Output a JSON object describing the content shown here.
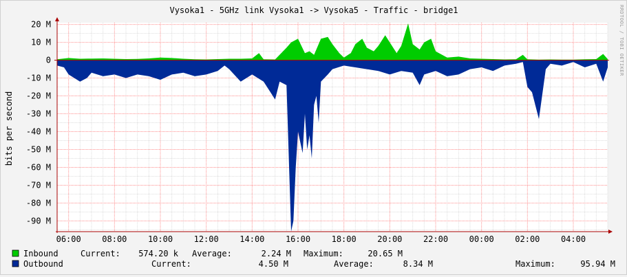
{
  "chart_data": {
    "type": "area",
    "title": "Vysoka1 - 5GHz link Vysoka1 -> Vysoka5 - Traffic - bridge1",
    "ylabel": "bits per second",
    "watermark": "RRDTOOL / TOBI OETIKER",
    "ylim": [
      -96,
      21
    ],
    "yticks": [
      20,
      10,
      0,
      -10,
      -20,
      -30,
      -40,
      -50,
      -60,
      -70,
      -80,
      -90
    ],
    "ytick_labels": [
      "20 M",
      "10 M",
      "0",
      "-10 M",
      "-20 M",
      "-30 M",
      "-40 M",
      "-50 M",
      "-60 M",
      "-70 M",
      "-80 M",
      "-90 M"
    ],
    "xlim": [
      5.5,
      29.5
    ],
    "xticks": [
      6,
      8,
      10,
      12,
      14,
      16,
      18,
      20,
      22,
      24,
      26,
      28
    ],
    "xtick_labels": [
      "06:00",
      "08:00",
      "10:00",
      "12:00",
      "14:00",
      "16:00",
      "18:00",
      "20:00",
      "22:00",
      "00:00",
      "02:00",
      "04:00"
    ],
    "grid": true,
    "colors": {
      "background": "#f3f3f3",
      "canvas": "#ffffff",
      "inbound": "#00cc00",
      "outbound": "#002a97",
      "grid_minor": "#dddddd",
      "grid_major": "#ff8c8c",
      "axis": "#aa0000"
    },
    "series": [
      {
        "name": "Inbound",
        "color": "#00cc00",
        "x": [
          5.5,
          6.0,
          6.5,
          7.0,
          7.5,
          8.0,
          8.5,
          9.0,
          9.5,
          10.0,
          10.5,
          11.0,
          11.5,
          12.0,
          12.5,
          13.0,
          13.5,
          14.0,
          14.3,
          14.5,
          15.0,
          15.5,
          15.7,
          16.0,
          16.3,
          16.5,
          16.7,
          17.0,
          17.3,
          17.5,
          17.8,
          18.0,
          18.3,
          18.5,
          18.8,
          19.0,
          19.3,
          19.5,
          19.8,
          20.0,
          20.3,
          20.5,
          20.8,
          21.0,
          21.3,
          21.5,
          21.8,
          22.0,
          22.5,
          23.0,
          23.5,
          24.0,
          24.5,
          25.0,
          25.5,
          25.8,
          26.0,
          26.5,
          27.0,
          27.5,
          28.0,
          28.5,
          29.0,
          29.3,
          29.5
        ],
        "values": [
          0.5,
          1.2,
          0.8,
          0.9,
          1.0,
          0.8,
          0.6,
          0.7,
          1.0,
          1.5,
          1.2,
          0.8,
          0.5,
          0.4,
          0.6,
          0.8,
          0.8,
          1.0,
          4.0,
          0.5,
          0.4,
          7.0,
          10.0,
          12.0,
          4.0,
          5.0,
          3.0,
          12.0,
          13.0,
          9.0,
          4.0,
          1.5,
          4.0,
          9.0,
          12.0,
          7.0,
          5.0,
          8.0,
          14.0,
          10.0,
          4.0,
          8.0,
          20.6,
          9.0,
          6.0,
          10.0,
          12.0,
          5.0,
          1.5,
          2.0,
          1.0,
          0.8,
          0.6,
          0.4,
          0.5,
          3.0,
          0.5,
          0.3,
          0.4,
          0.3,
          0.3,
          0.5,
          0.6,
          3.5,
          0.6
        ]
      },
      {
        "name": "Outbound",
        "color": "#002a97",
        "x": [
          5.5,
          5.8,
          6.0,
          6.5,
          6.8,
          7.0,
          7.5,
          8.0,
          8.5,
          9.0,
          9.5,
          10.0,
          10.5,
          11.0,
          11.5,
          12.0,
          12.5,
          12.8,
          13.0,
          13.5,
          14.0,
          14.5,
          14.8,
          15.0,
          15.2,
          15.5,
          15.7,
          15.8,
          15.9,
          16.0,
          16.2,
          16.3,
          16.4,
          16.5,
          16.6,
          16.7,
          16.8,
          16.9,
          17.0,
          17.3,
          17.5,
          18.0,
          18.5,
          19.0,
          19.5,
          20.0,
          20.5,
          21.0,
          21.3,
          21.5,
          22.0,
          22.5,
          23.0,
          23.5,
          24.0,
          24.5,
          25.0,
          25.5,
          25.8,
          26.0,
          26.2,
          26.5,
          26.8,
          27.0,
          27.5,
          28.0,
          28.5,
          29.0,
          29.3,
          29.5
        ],
        "values": [
          -3,
          -4,
          -8,
          -12,
          -10,
          -7,
          -9,
          -8,
          -10,
          -8,
          -9,
          -11,
          -8,
          -7,
          -9,
          -8,
          -6,
          -3,
          -5,
          -12,
          -8,
          -12,
          -18,
          -22,
          -12,
          -14,
          -95.9,
          -90,
          -60,
          -40,
          -52,
          -30,
          -50,
          -42,
          -55,
          -25,
          -20,
          -35,
          -12,
          -8,
          -5,
          -3,
          -4,
          -5,
          -6,
          -8,
          -6,
          -7,
          -14,
          -8,
          -6,
          -9,
          -8,
          -5,
          -4,
          -6,
          -3,
          -2,
          -1,
          -15,
          -18,
          -33,
          -5,
          -2,
          -3,
          -1,
          -4,
          -2,
          -12,
          -4
        ]
      }
    ],
    "legend": [
      {
        "name": "Inbound",
        "current": "574.20 k",
        "average": "2.24 M",
        "maximum": "20.65 M"
      },
      {
        "name": "Outbound",
        "current": "4.50 M",
        "average": "8.34 M",
        "maximum": "95.94 M"
      }
    ],
    "legend_labels": {
      "current": "Current:",
      "average": "Average:",
      "maximum": "Maximum:"
    }
  }
}
